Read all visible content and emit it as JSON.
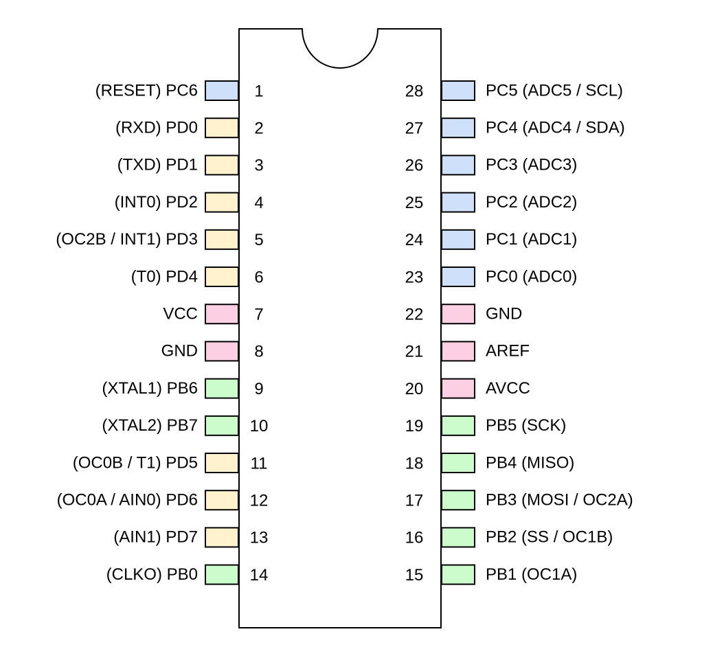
{
  "colors": {
    "background": "#ffffff",
    "outline": "#000000",
    "blue": "#cfe0fb",
    "yellow": "#fff2cc",
    "pink": "#fccfe3",
    "green": "#ccfccc"
  },
  "pins": {
    "left": [
      {
        "number": "1",
        "label": "(RESET) PC6",
        "color": "blue"
      },
      {
        "number": "2",
        "label": "(RXD) PD0",
        "color": "yellow"
      },
      {
        "number": "3",
        "label": "(TXD) PD1",
        "color": "yellow"
      },
      {
        "number": "4",
        "label": "(INT0) PD2",
        "color": "yellow"
      },
      {
        "number": "5",
        "label": "(OC2B / INT1) PD3",
        "color": "yellow"
      },
      {
        "number": "6",
        "label": "(T0) PD4",
        "color": "yellow"
      },
      {
        "number": "7",
        "label": "VCC",
        "color": "pink"
      },
      {
        "number": "8",
        "label": "GND",
        "color": "pink"
      },
      {
        "number": "9",
        "label": "(XTAL1) PB6",
        "color": "green"
      },
      {
        "number": "10",
        "label": "(XTAL2) PB7",
        "color": "green"
      },
      {
        "number": "11",
        "label": "(OC0B / T1) PD5",
        "color": "yellow"
      },
      {
        "number": "12",
        "label": "(OC0A / AIN0) PD6",
        "color": "yellow"
      },
      {
        "number": "13",
        "label": "(AIN1) PD7",
        "color": "yellow"
      },
      {
        "number": "14",
        "label": "(CLKO) PB0",
        "color": "green"
      }
    ],
    "right": [
      {
        "number": "28",
        "label": "PC5 (ADC5 / SCL)",
        "color": "blue"
      },
      {
        "number": "27",
        "label": "PC4 (ADC4 / SDA)",
        "color": "blue"
      },
      {
        "number": "26",
        "label": "PC3 (ADC3)",
        "color": "blue"
      },
      {
        "number": "25",
        "label": "PC2 (ADC2)",
        "color": "blue"
      },
      {
        "number": "24",
        "label": "PC1 (ADC1)",
        "color": "blue"
      },
      {
        "number": "23",
        "label": "PC0 (ADC0)",
        "color": "blue"
      },
      {
        "number": "22",
        "label": "GND",
        "color": "pink"
      },
      {
        "number": "21",
        "label": "AREF",
        "color": "pink"
      },
      {
        "number": "20",
        "label": "AVCC",
        "color": "pink"
      },
      {
        "number": "19",
        "label": "PB5 (SCK)",
        "color": "green"
      },
      {
        "number": "18",
        "label": "PB4 (MISO)",
        "color": "green"
      },
      {
        "number": "17",
        "label": "PB3 (MOSI / OC2A)",
        "color": "green"
      },
      {
        "number": "16",
        "label": "PB2 (SS / OC1B)",
        "color": "green"
      },
      {
        "number": "15",
        "label": "PB1 (OC1A)",
        "color": "green"
      }
    ]
  }
}
